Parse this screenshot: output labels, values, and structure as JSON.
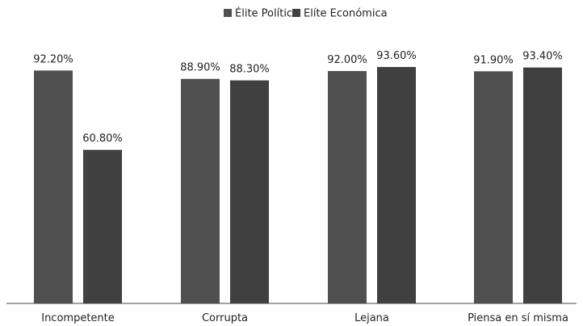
{
  "chart_data": {
    "type": "bar",
    "title": "",
    "xlabel": "",
    "ylabel": "",
    "ylim": [
      0,
      100
    ],
    "grid": false,
    "legend_position": "top-center",
    "categories": [
      "Incompetente",
      "Corrupta",
      "Lejana",
      "Piensa en sí misma"
    ],
    "series": [
      {
        "name": "Élite Política",
        "color": "#505050",
        "values": [
          92.2,
          88.9,
          92.0,
          91.9
        ],
        "labels": [
          "92.20%",
          "88.90%",
          "92.00%",
          "91.90%"
        ]
      },
      {
        "name": "Elíte Económica",
        "color": "#404040",
        "values": [
          60.8,
          88.3,
          93.6,
          93.4
        ],
        "labels": [
          "60.80%",
          "88.30%",
          "93.60%",
          "93.40%"
        ]
      }
    ]
  }
}
